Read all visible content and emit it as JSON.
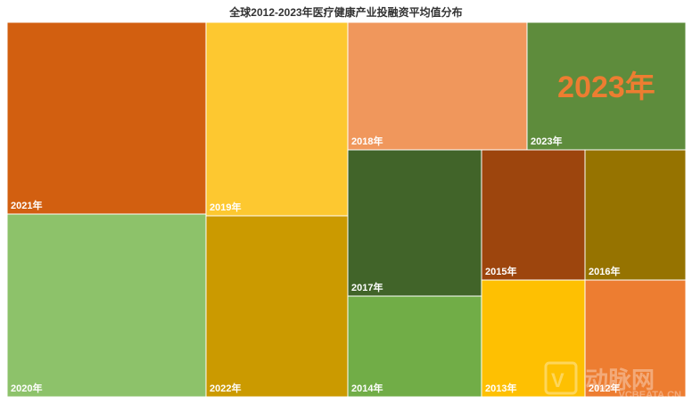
{
  "chart_data": {
    "type": "treemap",
    "title": "全球2012-2023年医疗健康产业投融资平均值分布",
    "cells": [
      {
        "label": "2021年",
        "color": "#D25F10"
      },
      {
        "label": "2020年",
        "color": "#8DC26A"
      },
      {
        "label": "2019年",
        "color": "#FDC830"
      },
      {
        "label": "2022年",
        "color": "#CB9A00"
      },
      {
        "label": "2018年",
        "color": "#F0975C"
      },
      {
        "label": "2023年",
        "color": "#5E8C3C",
        "highlight": true,
        "highlight_color": "#ED7D31"
      },
      {
        "label": "2017年",
        "color": "#416429"
      },
      {
        "label": "2014年",
        "color": "#71AD47"
      },
      {
        "label": "2015年",
        "color": "#9D450D"
      },
      {
        "label": "2016年",
        "color": "#967300"
      },
      {
        "label": "2013年",
        "color": "#FEC002"
      },
      {
        "label": "2012年",
        "color": "#ED7D31"
      }
    ]
  },
  "watermark": {
    "brand": "动脉网",
    "domain": "VCBEATA.CN"
  }
}
